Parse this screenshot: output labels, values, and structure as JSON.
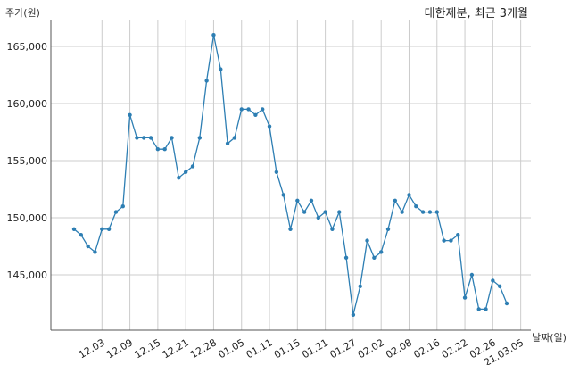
{
  "chart_data": {
    "type": "line",
    "title": "대한제분, 최근 3개월",
    "xlabel": "날짜(일)",
    "ylabel": "주가(원)",
    "x_ticks": [
      "12.03",
      "12.09",
      "12.15",
      "12.21",
      "12.28",
      "01.05",
      "01.11",
      "01.15",
      "01.21",
      "01.27",
      "02.02",
      "02.08",
      "02.16",
      "02.22",
      "02.26",
      "21.03.05"
    ],
    "y_ticks": [
      "145,000",
      "150,000",
      "155,000",
      "160,000",
      "165,000"
    ],
    "y_tick_values": [
      145000,
      150000,
      155000,
      160000,
      165000
    ],
    "ylim": [
      140000,
      167000
    ],
    "grid": true,
    "series_color": "#2d7eb3",
    "values": [
      149000,
      148500,
      147500,
      147000,
      149000,
      149000,
      150500,
      151000,
      159000,
      157000,
      157000,
      157000,
      156000,
      156000,
      157000,
      153500,
      154000,
      154500,
      157000,
      162000,
      166000,
      163000,
      156500,
      157000,
      159500,
      159500,
      159000,
      159500,
      158000,
      154000,
      152000,
      149000,
      151500,
      150500,
      151500,
      150000,
      150500,
      149000,
      150500,
      146500,
      141500,
      144000,
      148000,
      146500,
      147000,
      149000,
      151500,
      150500,
      152000,
      151000,
      150500,
      150500,
      150500,
      148000,
      148000,
      148500,
      143000,
      145000,
      142000,
      142000,
      144500,
      144000,
      142500
    ]
  }
}
